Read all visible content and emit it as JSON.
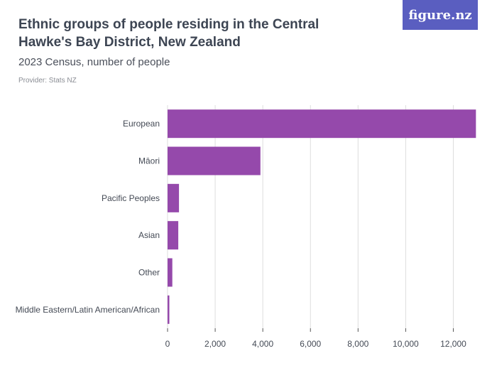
{
  "header": {
    "title": "Ethnic groups of people residing in the Central Hawke's Bay District, New Zealand",
    "subtitle": "2023 Census, number of people",
    "provider": "Provider: Stats NZ"
  },
  "logo": {
    "text": "figure.nz"
  },
  "colors": {
    "bar": "#9549ab",
    "grid": "#dddddd",
    "axis": "#555555",
    "logo_bg": "#5a5ec0"
  },
  "chart_data": {
    "type": "bar",
    "orientation": "horizontal",
    "categories": [
      "European",
      "Māori",
      "Pacific Peoples",
      "Asian",
      "Other",
      "Middle Eastern/Latin American/African"
    ],
    "values": [
      12950,
      3900,
      480,
      450,
      200,
      75
    ],
    "xlim": [
      0,
      13000
    ],
    "xticks": [
      0,
      2000,
      4000,
      6000,
      8000,
      10000,
      12000
    ],
    "xtick_labels": [
      "0",
      "2,000",
      "4,000",
      "6,000",
      "8,000",
      "10,000",
      "12,000"
    ],
    "grid": true,
    "legend": "none",
    "xlabel": "",
    "ylabel": ""
  }
}
